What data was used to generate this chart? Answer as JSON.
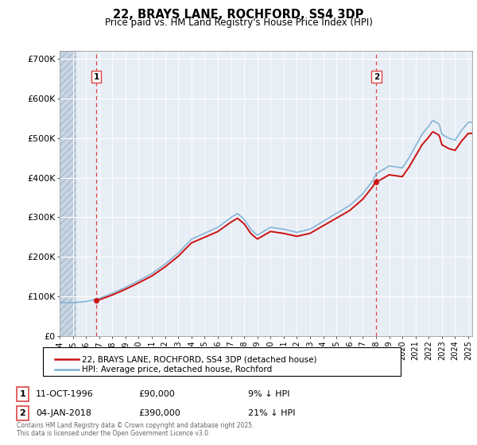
{
  "title": "22, BRAYS LANE, ROCHFORD, SS4 3DP",
  "subtitle": "Price paid vs. HM Land Registry's House Price Index (HPI)",
  "ylabel_ticks": [
    "£0",
    "£100K",
    "£200K",
    "£300K",
    "£400K",
    "£500K",
    "£600K",
    "£700K"
  ],
  "ytick_values": [
    0,
    100000,
    200000,
    300000,
    400000,
    500000,
    600000,
    700000
  ],
  "ylim": [
    0,
    720000
  ],
  "xlim_start": 1994.0,
  "xlim_end": 2025.3,
  "bg_color": "#e8eef5",
  "grid_color": "#ffffff",
  "hpi_color": "#7bafd4",
  "price_color": "#cc1111",
  "vline_color": "#dd4444",
  "marker1_date": 1996.79,
  "marker1_price": 90000,
  "marker2_date": 2018.02,
  "marker2_price": 390000,
  "legend_line1": "22, BRAYS LANE, ROCHFORD, SS4 3DP (detached house)",
  "legend_line2": "HPI: Average price, detached house, Rochford",
  "marker1_text": "11-OCT-1996",
  "marker1_price_text": "£90,000",
  "marker1_hpi_text": "9% ↓ HPI",
  "marker2_text": "04-JAN-2018",
  "marker2_price_text": "£390,000",
  "marker2_hpi_text": "21% ↓ HPI",
  "footer": "Contains HM Land Registry data © Crown copyright and database right 2025.\nThis data is licensed under the Open Government Licence v3.0.",
  "hatch_end_year": 1995.25
}
